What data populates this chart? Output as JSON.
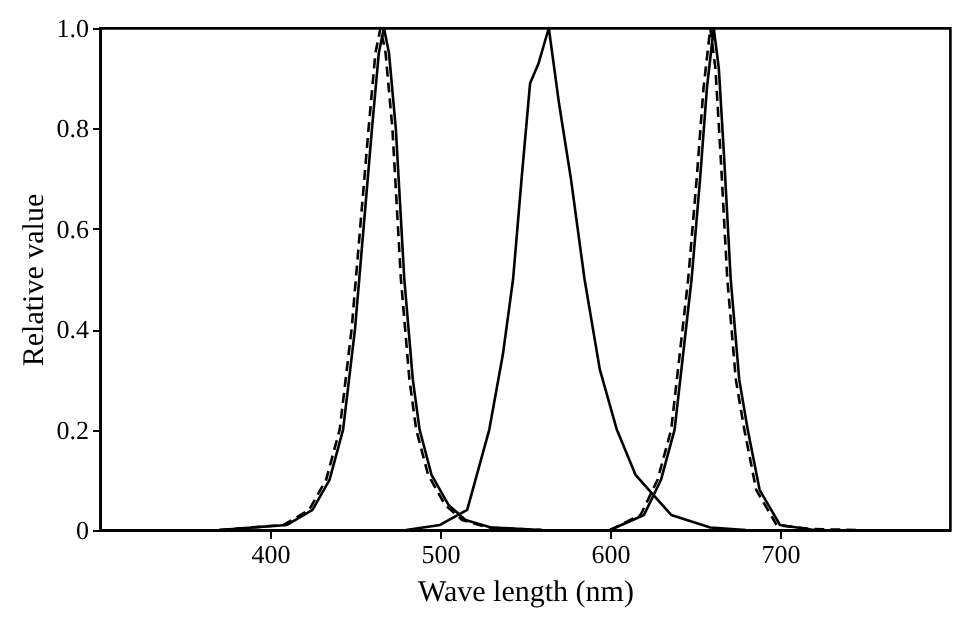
{
  "chart_data": {
    "type": "line",
    "xlabel": "Wave length (nm)",
    "ylabel": "Relative value",
    "xlim": [
      300,
      800
    ],
    "xticks": [
      400,
      500,
      600,
      700
    ],
    "ylim": [
      0,
      1
    ],
    "yticks": [
      0,
      0.2,
      0.4,
      0.6,
      0.8,
      {
        "value": 1,
        "label": "1.0"
      }
    ],
    "grid": false,
    "legend": false,
    "marker": "none",
    "series": [
      {
        "color": "#000000",
        "line_style": "solid",
        "x": [
          370,
          410,
          425,
          435,
          443,
          450,
          455,
          460,
          464,
          467,
          470,
          474,
          479,
          484,
          488,
          495,
          505,
          515,
          530,
          560
        ],
        "values": [
          0,
          0.01,
          0.04,
          0.1,
          0.2,
          0.4,
          0.6,
          0.8,
          0.95,
          1.0,
          0.95,
          0.8,
          0.5,
          0.3,
          0.2,
          0.11,
          0.05,
          0.02,
          0.005,
          0
        ]
      },
      {
        "color": "#000000",
        "line_style": "dashed",
        "x": [
          370,
          408,
          423,
          433,
          441,
          448,
          453,
          458,
          462,
          465,
          468,
          472,
          477,
          482,
          486,
          493,
          503,
          513,
          528,
          560
        ],
        "values": [
          0,
          0.01,
          0.04,
          0.1,
          0.2,
          0.4,
          0.6,
          0.8,
          0.95,
          1.0,
          0.95,
          0.8,
          0.5,
          0.3,
          0.2,
          0.11,
          0.05,
          0.02,
          0.005,
          0
        ]
      },
      {
        "color": "#000000",
        "line_style": "solid",
        "x": [
          480,
          500,
          516,
          529,
          537,
          543,
          548,
          553,
          558,
          564,
          570,
          577,
          585,
          594,
          604,
          615,
          636,
          659,
          680
        ],
        "values": [
          0,
          0.01,
          0.04,
          0.2,
          0.35,
          0.5,
          0.7,
          0.89,
          0.93,
          1.0,
          0.85,
          0.7,
          0.5,
          0.32,
          0.2,
          0.11,
          0.03,
          0.005,
          0
        ]
      },
      {
        "color": "#000000",
        "line_style": "solid",
        "x": [
          600,
          620,
          630,
          638,
          643,
          648,
          653,
          657,
          661,
          664,
          667,
          671,
          676,
          681,
          688,
          700,
          720
        ],
        "values": [
          0,
          0.03,
          0.1,
          0.2,
          0.35,
          0.5,
          0.7,
          0.88,
          1.0,
          0.92,
          0.75,
          0.5,
          0.3,
          0.2,
          0.08,
          0.01,
          0
        ]
      },
      {
        "color": "#000000",
        "line_style": "dashed",
        "x": [
          600,
          618,
          628,
          636,
          641,
          646,
          651,
          655,
          659,
          662,
          665,
          669,
          674,
          679,
          686,
          698,
          718,
          745
        ],
        "values": [
          0,
          0.03,
          0.1,
          0.2,
          0.35,
          0.5,
          0.7,
          0.88,
          1.0,
          0.92,
          0.75,
          0.5,
          0.3,
          0.2,
          0.08,
          0.01,
          0.002,
          0
        ]
      }
    ]
  }
}
